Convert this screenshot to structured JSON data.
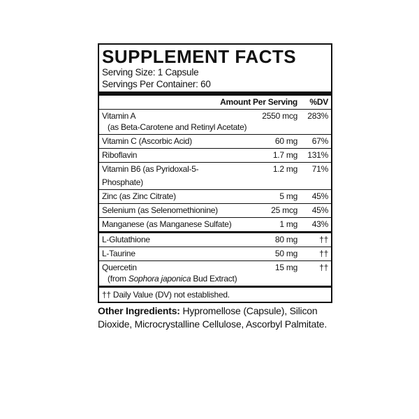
{
  "title": "SUPPLEMENT FACTS",
  "serving_size": "Serving Size: 1 Capsule",
  "servings_per_container": "Servings Per Container: 60",
  "header": {
    "amount": "Amount Per Serving",
    "dv": "%DV"
  },
  "nutrients": [
    {
      "name": "Vitamin A",
      "detail": "(as Beta-Carotene and Retinyl Acetate)",
      "amount": "2550 mcg",
      "dv": "283%"
    },
    {
      "name": "Vitamin C (Ascorbic Acid)",
      "amount": "60 mg",
      "dv": "67%"
    },
    {
      "name": "Riboflavin",
      "amount": "1.7 mg",
      "dv": "131%"
    },
    {
      "name": "Vitamin B6 (as Pyridoxal-5-Phosphate)",
      "amount": "1.2 mg",
      "dv": "71%"
    },
    {
      "name": "Zinc (as Zinc Citrate)",
      "amount": "5 mg",
      "dv": "45%"
    },
    {
      "name": "Selenium (as Selenomethionine)",
      "amount": "25 mcg",
      "dv": "45%"
    },
    {
      "name": "Manganese (as Manganese Sulfate)",
      "amount": "1 mg",
      "dv": "43%"
    }
  ],
  "other_nutrients": [
    {
      "name": "L-Glutathione",
      "amount": "80 mg",
      "dv": "††"
    },
    {
      "name": "L-Taurine",
      "amount": "50 mg",
      "dv": "††"
    },
    {
      "name": "Quercetin",
      "detail_prefix": "(from ",
      "detail_italic": "Sophora japonica",
      "detail_suffix": " Bud Extract)",
      "amount": "15 mg",
      "dv": "††"
    }
  ],
  "footnote": "†† Daily Value (DV) not established.",
  "other_ingredients": {
    "label": "Other Ingredients:",
    "text": "Hypromellose (Capsule), Silicon Dioxide, Microcrystalline Cellulose, Ascorbyl Palmitate."
  }
}
